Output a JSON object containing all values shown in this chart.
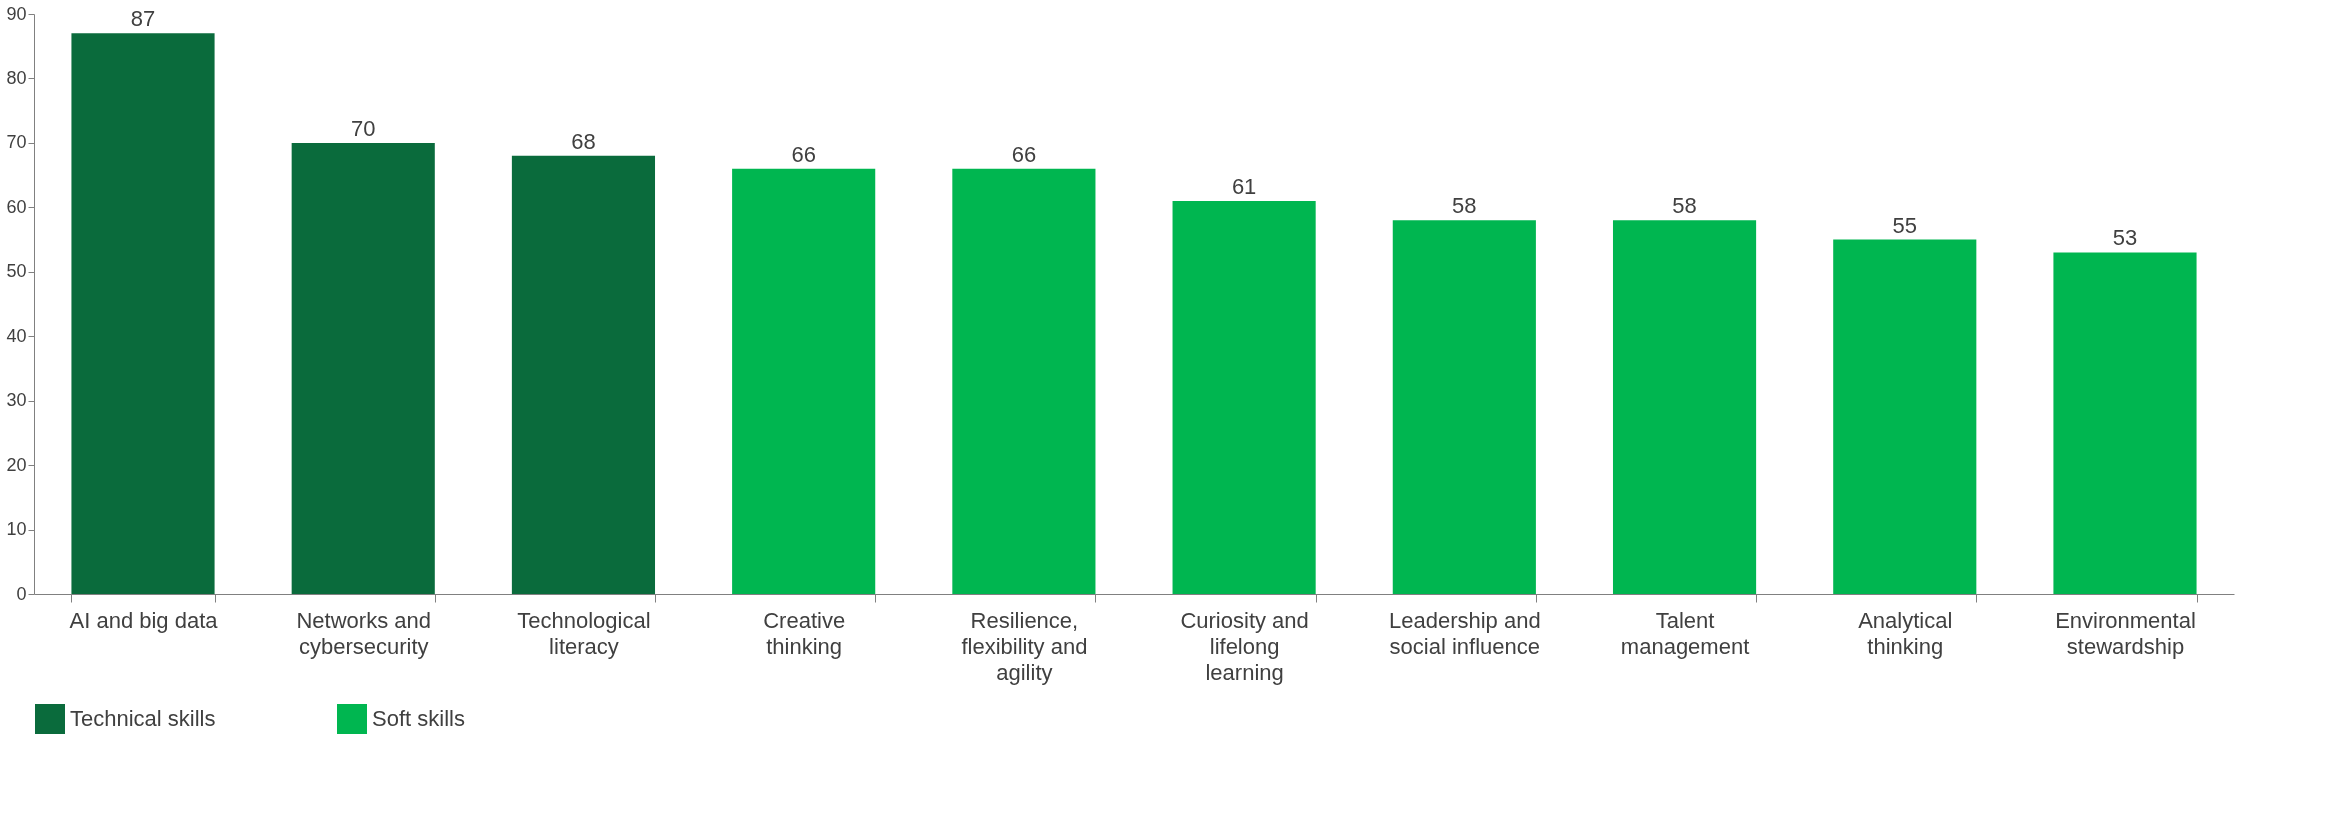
{
  "chart_data": {
    "type": "bar",
    "categories": [
      "AI and big data",
      "Networks and cybersecurity",
      "Technological literacy",
      "Creative thinking",
      "Resilience, flexibility and agility",
      "Curiosity and lifelong learning",
      "Leadership and social influence",
      "Talent management",
      "Analytical thinking",
      "Environmental stewardship"
    ],
    "series": [
      {
        "name": "Technical skills",
        "color": "#0a6b3c",
        "values": [
          87,
          70,
          68,
          null,
          null,
          null,
          null,
          null,
          null,
          null
        ]
      },
      {
        "name": "Soft skills",
        "color": "#00b650",
        "values": [
          null,
          null,
          null,
          66,
          66,
          61,
          58,
          58,
          55,
          53
        ]
      }
    ],
    "ylim": [
      0,
      90
    ],
    "yticks": [
      0,
      10,
      20,
      30,
      40,
      50,
      60,
      70,
      80,
      90
    ],
    "grid": false,
    "legend": "bottom",
    "data_labels": true
  }
}
